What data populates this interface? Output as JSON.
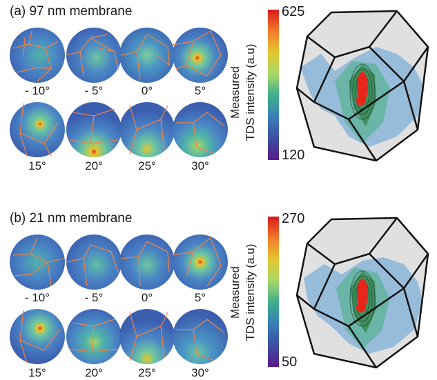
{
  "panels": [
    {
      "label": "(a)  97 nm membrane",
      "angles": [
        "- 10°",
        "- 5°",
        "0°",
        "5°",
        "15°",
        "20°",
        "25°",
        "30°"
      ],
      "colorbar": {
        "title_line1": "Measured",
        "title_line2": "TDS intensity (a.u)",
        "max": "625",
        "min": "120"
      }
    },
    {
      "label": "(b)  21 nm membrane",
      "angles": [
        "- 10°",
        "- 5°",
        "0°",
        "5°",
        "15°",
        "20°",
        "25°",
        "30°"
      ],
      "colorbar": {
        "title_line1": "Measured",
        "title_line2": "TDS intensity (a.u)",
        "max": "270",
        "min": "50"
      }
    }
  ],
  "colors": {
    "disc_base": "#3f63b4",
    "grain_boundary": "#e8834a",
    "hot_spot": "#e8261a",
    "colormap": [
      "#d7191c",
      "#f27b2c",
      "#e4c62f",
      "#a6d96a",
      "#3fae8a",
      "#3a7fb8",
      "#3b4fa0",
      "#5a1a8c"
    ],
    "polyhedron_edge": "#111111"
  }
}
